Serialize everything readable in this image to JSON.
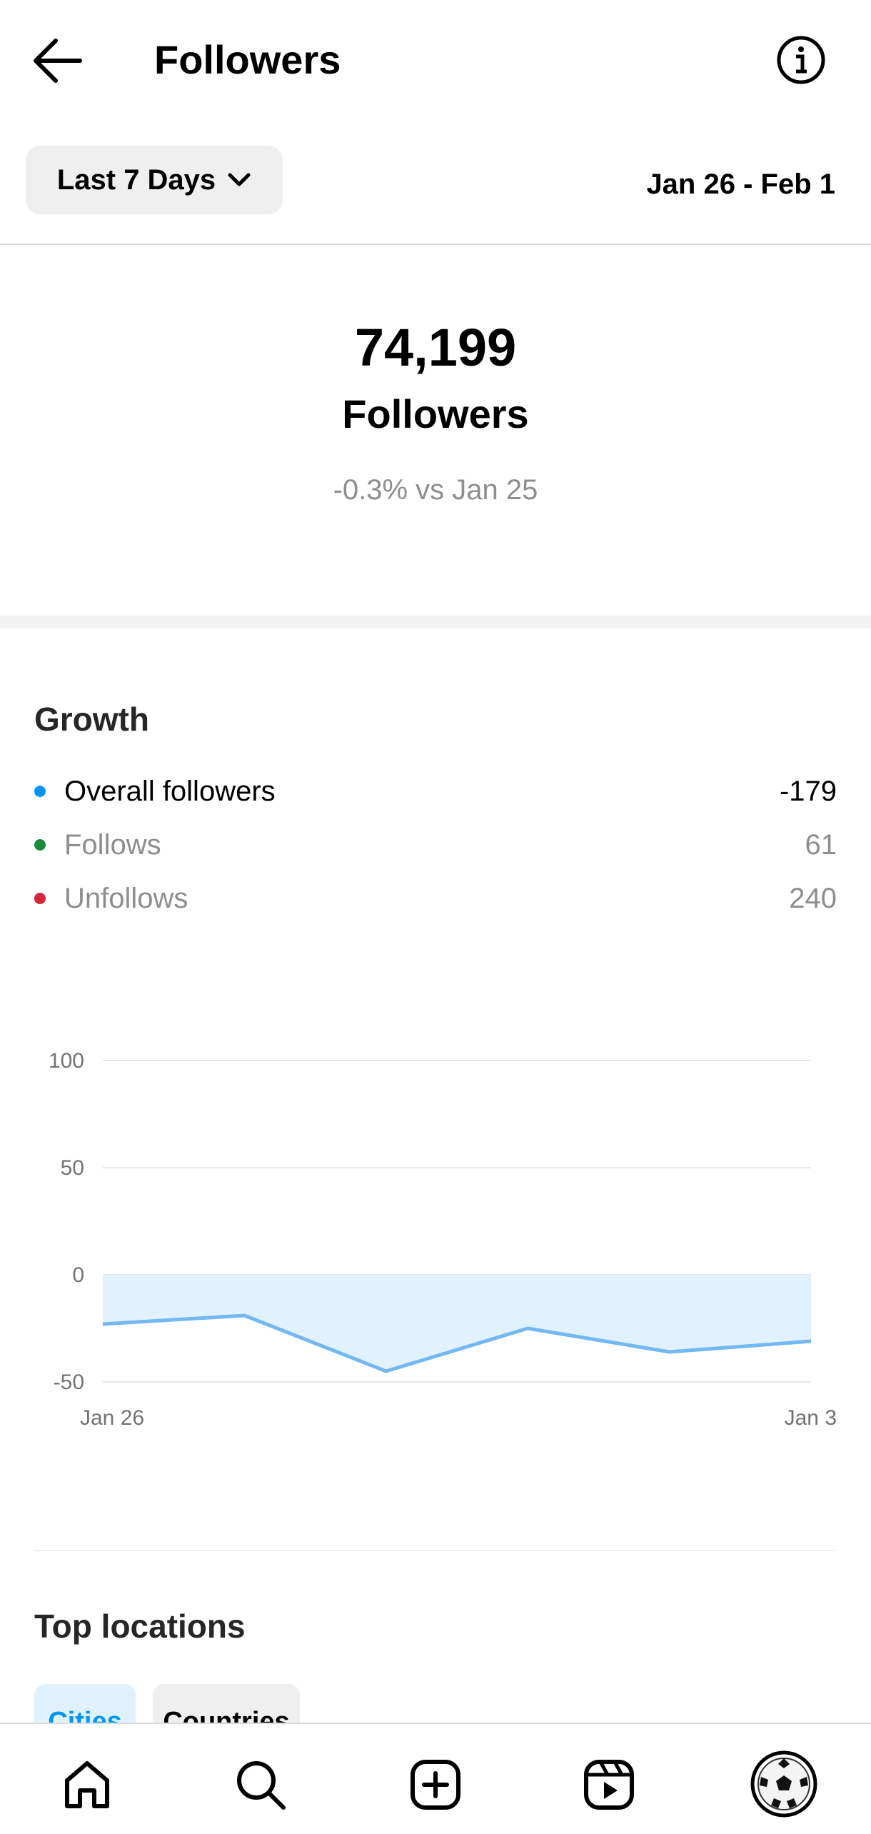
{
  "header": {
    "title": "Followers",
    "back_icon": "arrow-left-icon",
    "info_icon": "info-icon"
  },
  "filter": {
    "range_label": "Last 7 Days",
    "date_range": "Jan 26 - Feb 1"
  },
  "summary": {
    "count": "74,199",
    "label": "Followers",
    "change": "-0.3% vs Jan 25"
  },
  "growth": {
    "title": "Growth",
    "legend": [
      {
        "label": "Overall followers",
        "value": "-179",
        "color": "#0095f6"
      },
      {
        "label": "Follows",
        "value": "61",
        "color": "#1a8a3c"
      },
      {
        "label": "Unfollows",
        "value": "240",
        "color": "#d6243a"
      }
    ]
  },
  "chart_data": {
    "type": "area",
    "x_tick_labels": [
      "Jan 26",
      "Jan 3"
    ],
    "y_ticks": [
      "100",
      "50",
      "0",
      "-50"
    ],
    "ylim": [
      -50,
      100
    ],
    "grid": true,
    "series": [
      {
        "values": [
          -23,
          -19,
          -45,
          -25,
          -36,
          -31
        ],
        "color": "#74b8f2",
        "fill": "#e1f1fd"
      }
    ]
  },
  "top_locations": {
    "title": "Top locations",
    "tabs": [
      "Cities",
      "Countries"
    ]
  },
  "bottom_nav": {
    "items": [
      "home-icon",
      "search-icon",
      "create-icon",
      "reels-icon",
      "profile-avatar-icon"
    ]
  }
}
